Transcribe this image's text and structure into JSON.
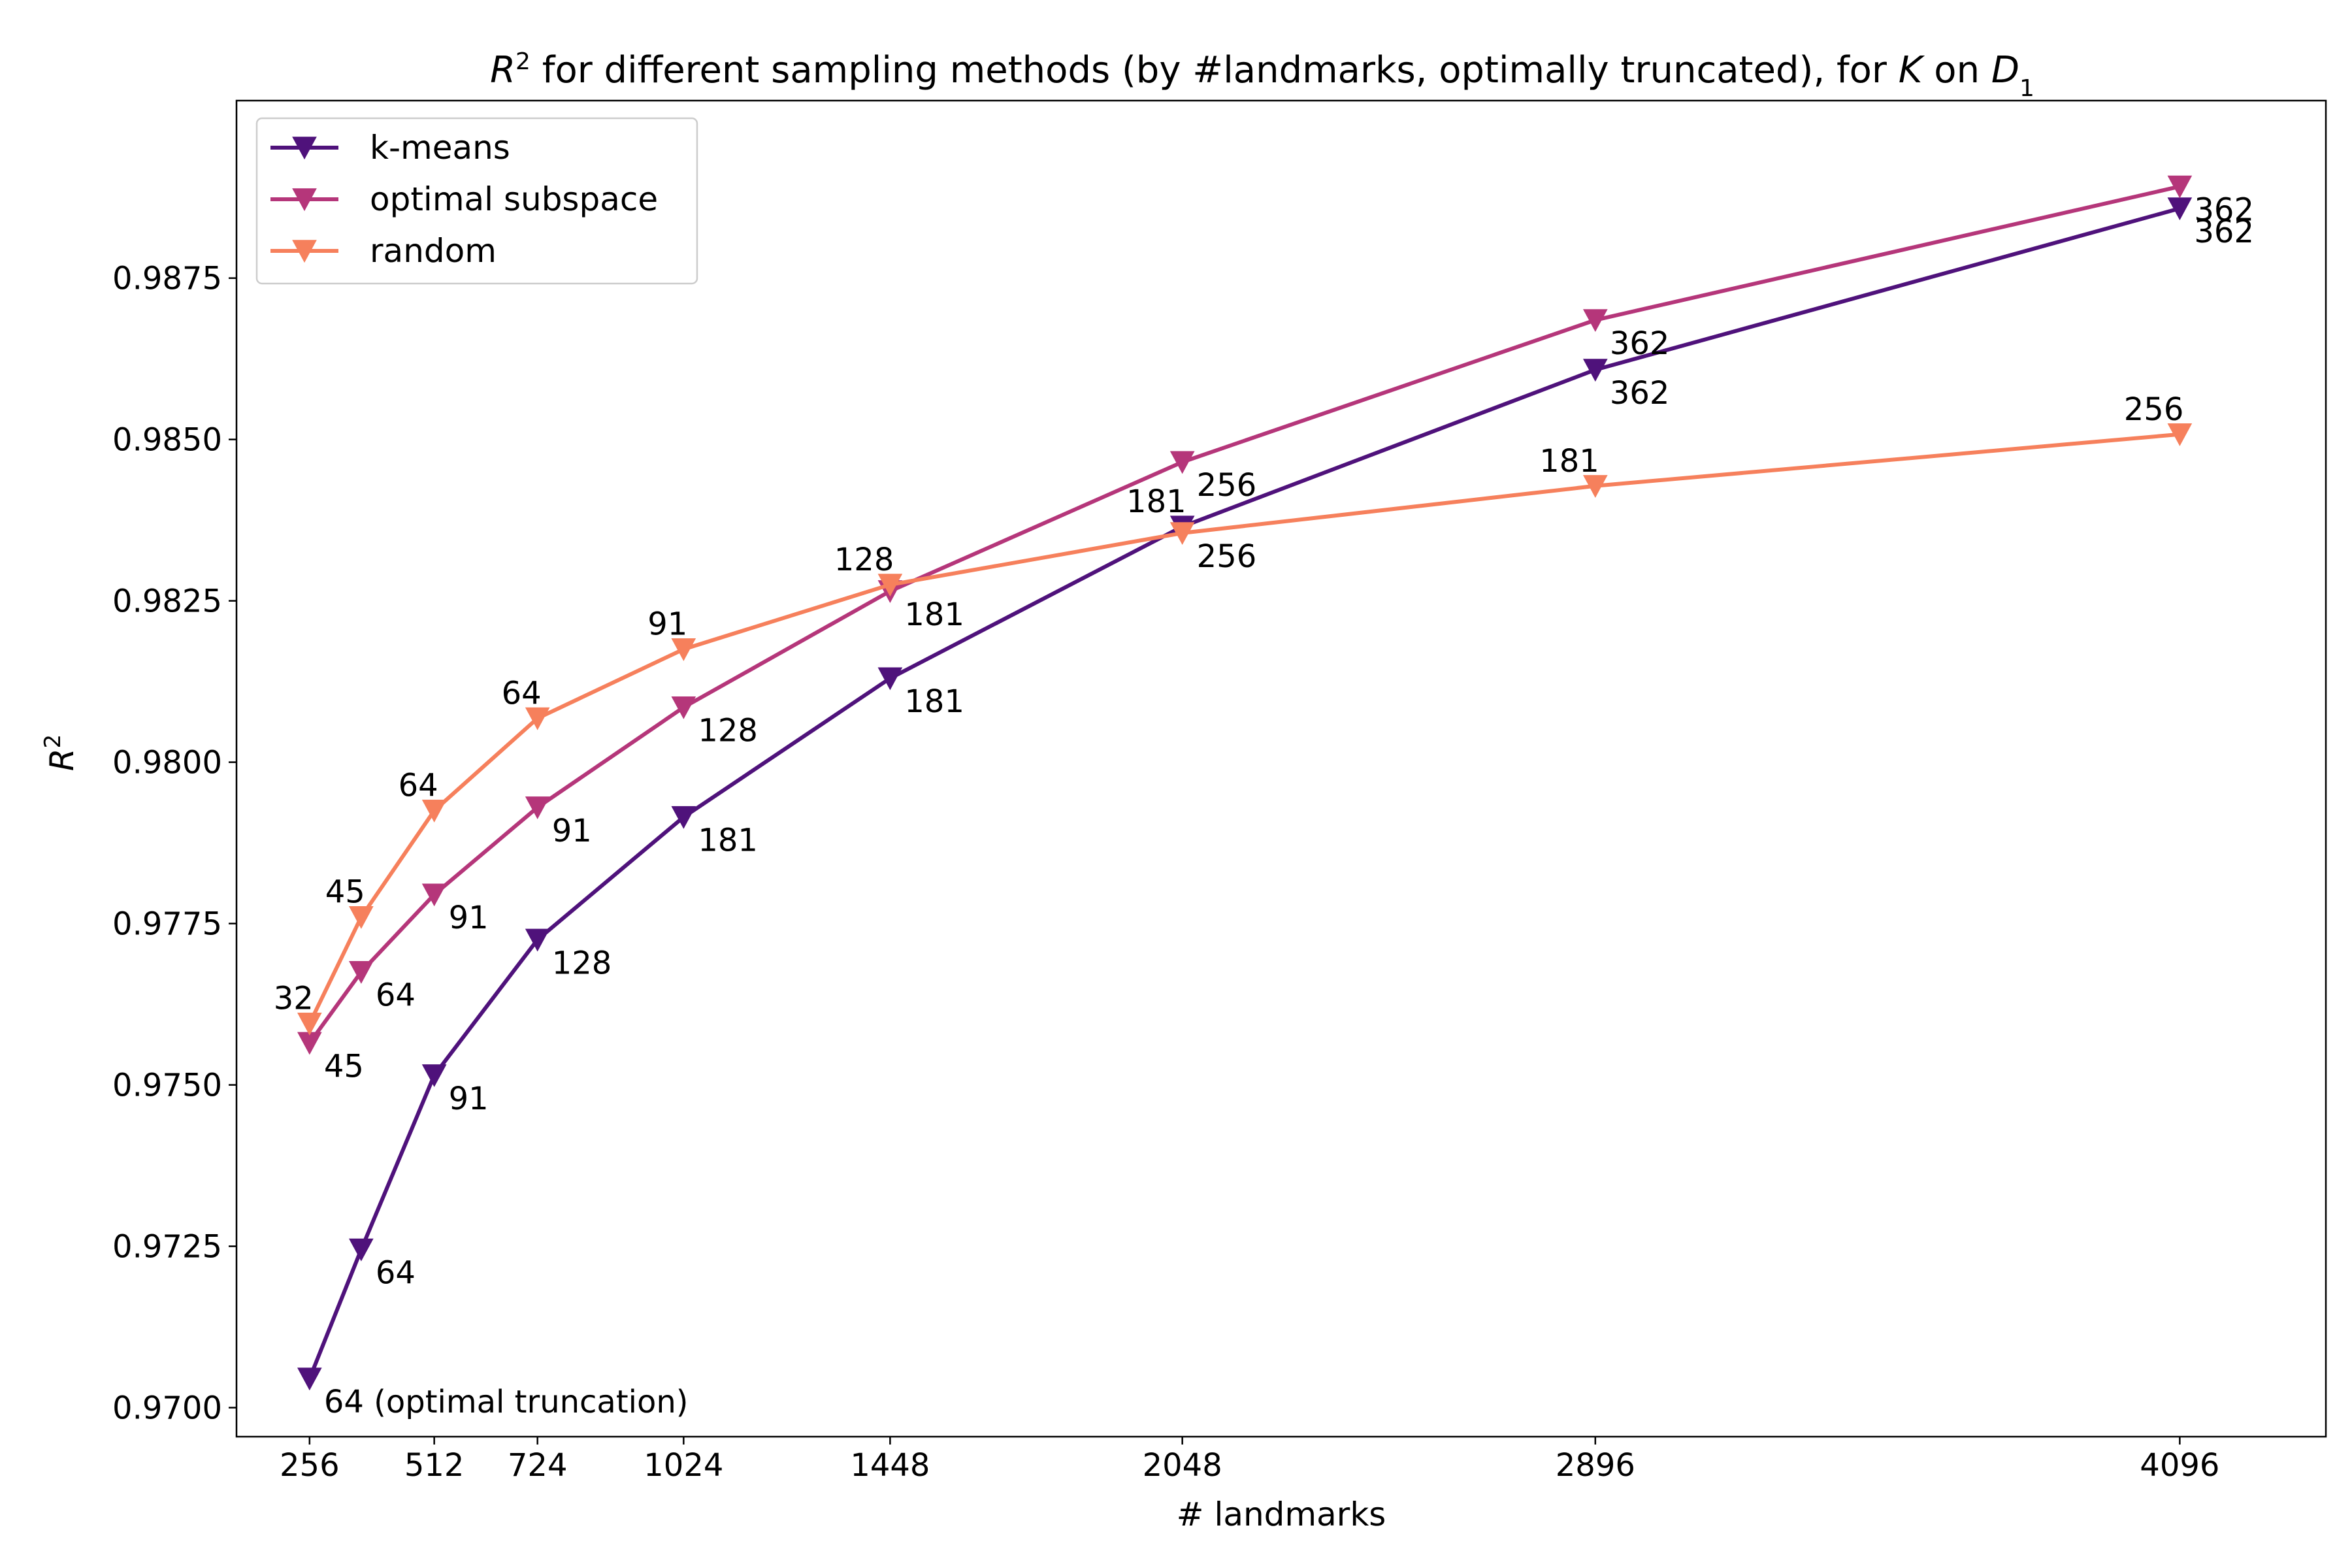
{
  "chart_data": {
    "type": "line",
    "title_parts": {
      "r": "R",
      "sup": "2",
      "mid": " for different sampling methods (by #landmarks, optimally truncated), for ",
      "k": "K",
      "on": " on ",
      "d": "D",
      "sub": "1"
    },
    "xlabel": "# landmarks",
    "ylabel_parts": {
      "r": "R",
      "sup": "2"
    },
    "xlim": [
      106,
      4396
    ],
    "ylim": [
      0.96955,
      0.99025
    ],
    "xticks": [
      {
        "value": 256,
        "label": "256"
      },
      {
        "value": 512,
        "label": "512"
      },
      {
        "value": 724,
        "label": "724"
      },
      {
        "value": 1024,
        "label": "1024"
      },
      {
        "value": 1448,
        "label": "1448"
      },
      {
        "value": 2048,
        "label": "2048"
      },
      {
        "value": 2896,
        "label": "2896"
      },
      {
        "value": 4096,
        "label": "4096"
      }
    ],
    "yticks": [
      {
        "value": 0.97,
        "label": "0.9700"
      },
      {
        "value": 0.9725,
        "label": "0.9725"
      },
      {
        "value": 0.975,
        "label": "0.9750"
      },
      {
        "value": 0.9775,
        "label": "0.9775"
      },
      {
        "value": 0.98,
        "label": "0.9800"
      },
      {
        "value": 0.9825,
        "label": "0.9825"
      },
      {
        "value": 0.985,
        "label": "0.9850"
      },
      {
        "value": 0.9875,
        "label": "0.9875"
      }
    ],
    "legend_position": "top-left",
    "grid": false,
    "marker": "triangle-down",
    "series": [
      {
        "name": "k-means",
        "color": "#4f127b",
        "points": [
          {
            "x": 256,
            "y": 0.97045,
            "label": "64 (optimal truncation)",
            "pos": "below-right"
          },
          {
            "x": 362,
            "y": 0.97245,
            "label": "64",
            "pos": "below-right"
          },
          {
            "x": 512,
            "y": 0.97515,
            "label": "91",
            "pos": "below-right"
          },
          {
            "x": 724,
            "y": 0.97725,
            "label": "128",
            "pos": "below-right"
          },
          {
            "x": 1024,
            "y": 0.97915,
            "label": "181",
            "pos": "below-right"
          },
          {
            "x": 1448,
            "y": 0.9813,
            "label": "181",
            "pos": "below-right"
          },
          {
            "x": 2048,
            "y": 0.98365,
            "label": "181",
            "pos": "above-left"
          },
          {
            "x": 2896,
            "y": 0.98608,
            "label": "362",
            "pos": "below-right"
          },
          {
            "x": 4096,
            "y": 0.98858,
            "label": "362",
            "pos": "below-right"
          }
        ]
      },
      {
        "name": "optimal subspace",
        "color": "#b5367a",
        "points": [
          {
            "x": 256,
            "y": 0.97565,
            "label": "45",
            "pos": "below-right"
          },
          {
            "x": 362,
            "y": 0.97675,
            "label": "64",
            "pos": "below-right"
          },
          {
            "x": 512,
            "y": 0.97795,
            "label": "91",
            "pos": "below-right"
          },
          {
            "x": 724,
            "y": 0.9793,
            "label": "91",
            "pos": "below-right"
          },
          {
            "x": 1024,
            "y": 0.98085,
            "label": "128",
            "pos": "below-right"
          },
          {
            "x": 1448,
            "y": 0.98265,
            "label": "181",
            "pos": "below-right"
          },
          {
            "x": 2048,
            "y": 0.98465,
            "label": "256",
            "pos": "below-right"
          },
          {
            "x": 2896,
            "y": 0.98685,
            "label": "362",
            "pos": "below-right"
          },
          {
            "x": 4096,
            "y": 0.98892,
            "label": "362",
            "pos": "below-right"
          }
        ]
      },
      {
        "name": "random",
        "color": "#f6805c",
        "points": [
          {
            "x": 256,
            "y": 0.97595,
            "label": "32",
            "pos": "above-left"
          },
          {
            "x": 362,
            "y": 0.9776,
            "label": "45",
            "pos": "above-left"
          },
          {
            "x": 512,
            "y": 0.97925,
            "label": "64",
            "pos": "above-left"
          },
          {
            "x": 724,
            "y": 0.98068,
            "label": "64",
            "pos": "above-left"
          },
          {
            "x": 1024,
            "y": 0.98175,
            "label": "91",
            "pos": "above-left"
          },
          {
            "x": 1448,
            "y": 0.98275,
            "label": "128",
            "pos": "above-left"
          },
          {
            "x": 2048,
            "y": 0.98355,
            "label": "256",
            "pos": "below-right"
          },
          {
            "x": 2896,
            "y": 0.98428,
            "label": "181",
            "pos": "above-left"
          },
          {
            "x": 4096,
            "y": 0.98508,
            "label": "256",
            "pos": "above-left"
          }
        ]
      }
    ]
  }
}
